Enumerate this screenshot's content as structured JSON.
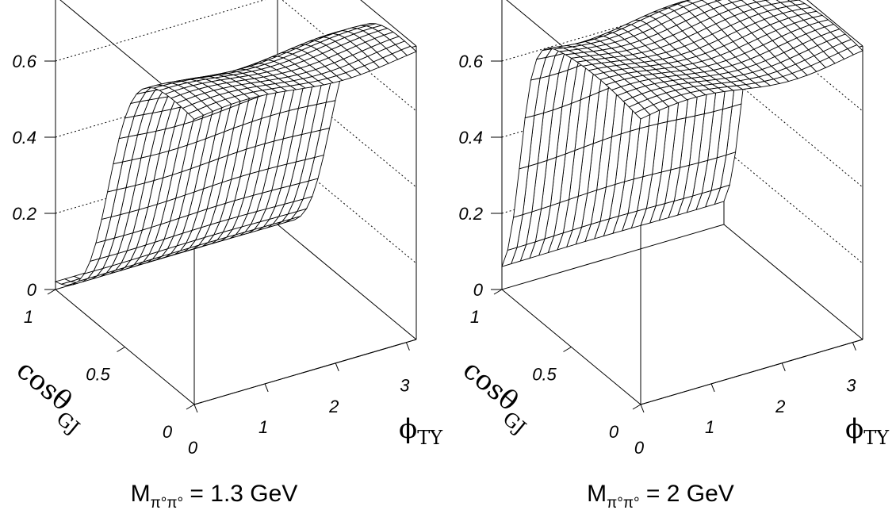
{
  "chart_data": [
    {
      "type": "surface",
      "caption_main": "M",
      "caption_sub": "π°π°",
      "caption_value": " = 1.3 GeV",
      "x_axis": {
        "symbol": "ϕ",
        "subscript": "TY",
        "range": [
          0,
          3.14159
        ],
        "ticks": [
          "0",
          "1",
          "2",
          "3"
        ]
      },
      "y_axis": {
        "symbol": "cosθ",
        "subscript": "GJ",
        "range": [
          0,
          1
        ],
        "ticks": [
          "0",
          "0.5",
          "1"
        ]
      },
      "z_axis": {
        "range": [
          0,
          0.75
        ],
        "ticks": [
          "0",
          "0.2",
          "0.4",
          "0.6"
        ]
      },
      "grid": {
        "nx": 24,
        "ny": 24
      },
      "surface": {
        "plateau": 0.75,
        "edge": 0.62,
        "width": 0.09,
        "floor": 0.01,
        "ripple": 0.012
      }
    },
    {
      "type": "surface",
      "caption_main": "M",
      "caption_sub": "π°π°",
      "caption_value": " = 2 GeV",
      "x_axis": {
        "symbol": "ϕ",
        "subscript": "TY",
        "range": [
          0,
          3.14159
        ],
        "ticks": [
          "0",
          "1",
          "2",
          "3"
        ]
      },
      "y_axis": {
        "symbol": "cosθ",
        "subscript": "GJ",
        "range": [
          0,
          1
        ],
        "ticks": [
          "0",
          "0.5",
          "1"
        ]
      },
      "z_axis": {
        "range": [
          0,
          0.75
        ],
        "ticks": [
          "0",
          "0.2",
          "0.4",
          "0.6"
        ]
      },
      "grid": {
        "nx": 24,
        "ny": 24
      },
      "surface": {
        "plateau": 0.75,
        "edge": 0.87,
        "width": 0.05,
        "floor": 0.01,
        "ripple": 0.015
      }
    }
  ]
}
